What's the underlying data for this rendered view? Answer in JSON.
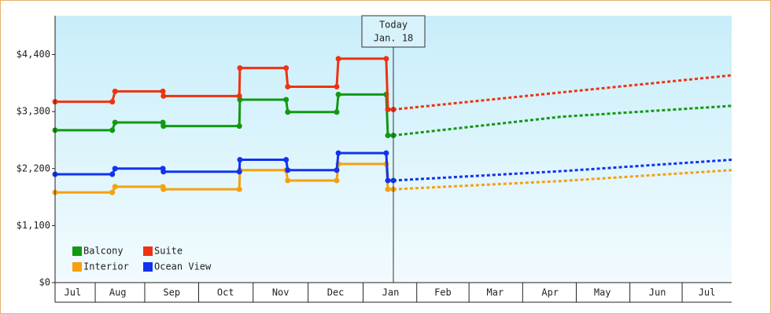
{
  "chart_data": {
    "type": "line",
    "xlim": [
      0,
      12.3
    ],
    "xticks": [
      {
        "value": 0.32,
        "label": "Jul"
      },
      {
        "value": 1.14,
        "label": "Aug"
      },
      {
        "value": 2.12,
        "label": "Sep"
      },
      {
        "value": 3.1,
        "label": "Oct"
      },
      {
        "value": 4.1,
        "label": "Nov"
      },
      {
        "value": 5.1,
        "label": "Dec"
      },
      {
        "value": 6.1,
        "label": "Jan"
      },
      {
        "value": 7.05,
        "label": "Feb"
      },
      {
        "value": 8.0,
        "label": "Mar"
      },
      {
        "value": 9.0,
        "label": "Apr"
      },
      {
        "value": 9.95,
        "label": "May"
      },
      {
        "value": 10.95,
        "label": "Jun"
      },
      {
        "value": 11.85,
        "label": "Jul"
      }
    ],
    "ylim": [
      0,
      5150
    ],
    "yticks": [
      {
        "value": 0,
        "label": "$0"
      },
      {
        "value": 1100,
        "label": "$1,100"
      },
      {
        "value": 2200,
        "label": "$2,200"
      },
      {
        "value": 3300,
        "label": "$3,300"
      },
      {
        "value": 4400,
        "label": "$4,400"
      }
    ],
    "annotation": {
      "x": 6.15,
      "lines": [
        "Today",
        "Jan. 18"
      ]
    },
    "legend": "lower-left",
    "series": [
      {
        "name": "Balcony",
        "color": "#119911",
        "x": [
          0,
          1.04,
          1.09,
          1.96,
          1.97,
          3.35,
          3.36,
          4.2,
          4.23,
          5.12,
          5.15,
          6.02,
          6.05,
          6.15
        ],
        "values": [
          2940,
          2940,
          3090,
          3090,
          3020,
          3020,
          3530,
          3530,
          3290,
          3290,
          3630,
          3630,
          2840,
          2840
        ],
        "forecast_x": [
          6.15,
          9.2,
          12.3
        ],
        "forecast_values": [
          2840,
          3200,
          3410
        ]
      },
      {
        "name": "Suite",
        "color": "#ee3311",
        "x": [
          0,
          1.04,
          1.09,
          1.96,
          1.97,
          3.35,
          3.36,
          4.2,
          4.23,
          5.12,
          5.15,
          6.02,
          6.05,
          6.15
        ],
        "values": [
          3490,
          3490,
          3690,
          3690,
          3600,
          3600,
          4140,
          4140,
          3780,
          3780,
          4320,
          4320,
          3340,
          3340
        ],
        "forecast_x": [
          6.15,
          9.2,
          12.3
        ],
        "forecast_values": [
          3340,
          3670,
          4000
        ]
      },
      {
        "name": "Interior",
        "color": "#f5a011",
        "x": [
          0,
          1.04,
          1.09,
          1.96,
          1.97,
          3.35,
          3.36,
          4.2,
          4.23,
          5.12,
          5.15,
          6.02,
          6.05,
          6.15
        ],
        "values": [
          1740,
          1740,
          1850,
          1850,
          1800,
          1800,
          2170,
          2170,
          1970,
          1970,
          2290,
          2290,
          1800,
          1800
        ],
        "forecast_x": [
          6.15,
          9.2,
          12.3
        ],
        "forecast_values": [
          1800,
          1960,
          2170
        ]
      },
      {
        "name": "Ocean View",
        "color": "#1133ee",
        "x": [
          0,
          1.04,
          1.09,
          1.96,
          1.97,
          3.35,
          3.36,
          4.2,
          4.23,
          5.12,
          5.15,
          6.02,
          6.05,
          6.15
        ],
        "values": [
          2090,
          2090,
          2200,
          2200,
          2140,
          2140,
          2370,
          2370,
          2170,
          2170,
          2500,
          2500,
          1970,
          1970
        ],
        "forecast_x": [
          6.15,
          9.2,
          12.3
        ],
        "forecast_values": [
          1970,
          2150,
          2370
        ]
      }
    ]
  }
}
